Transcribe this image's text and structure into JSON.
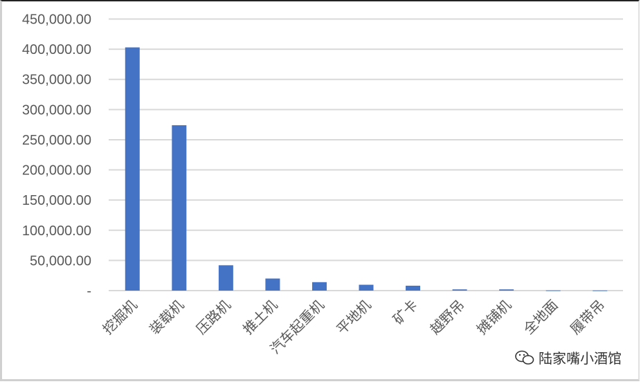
{
  "chart_data": {
    "type": "bar",
    "categories": [
      "挖掘机",
      "装载机",
      "压路机",
      "推土机",
      "汽车起重机",
      "平地机",
      "矿卡",
      "越野吊",
      "摊铺机",
      "全地面",
      "履带吊"
    ],
    "values": [
      403000,
      274000,
      42000,
      20000,
      14000,
      9700,
      8100,
      2000,
      2000,
      300,
      200
    ],
    "ylim": [
      0,
      450000
    ],
    "yticks": [
      "-",
      "50,000.00",
      "100,000.00",
      "150,000.00",
      "200,000.00",
      "250,000.00",
      "300,000.00",
      "350,000.00",
      "400,000.00",
      "450,000.00"
    ],
    "grid": true,
    "bar_color": "#4472C4",
    "title": "",
    "xlabel": "",
    "ylabel": ""
  },
  "watermark": {
    "text": "陆家嘴小酒馆",
    "icon": "wechat-icon"
  }
}
